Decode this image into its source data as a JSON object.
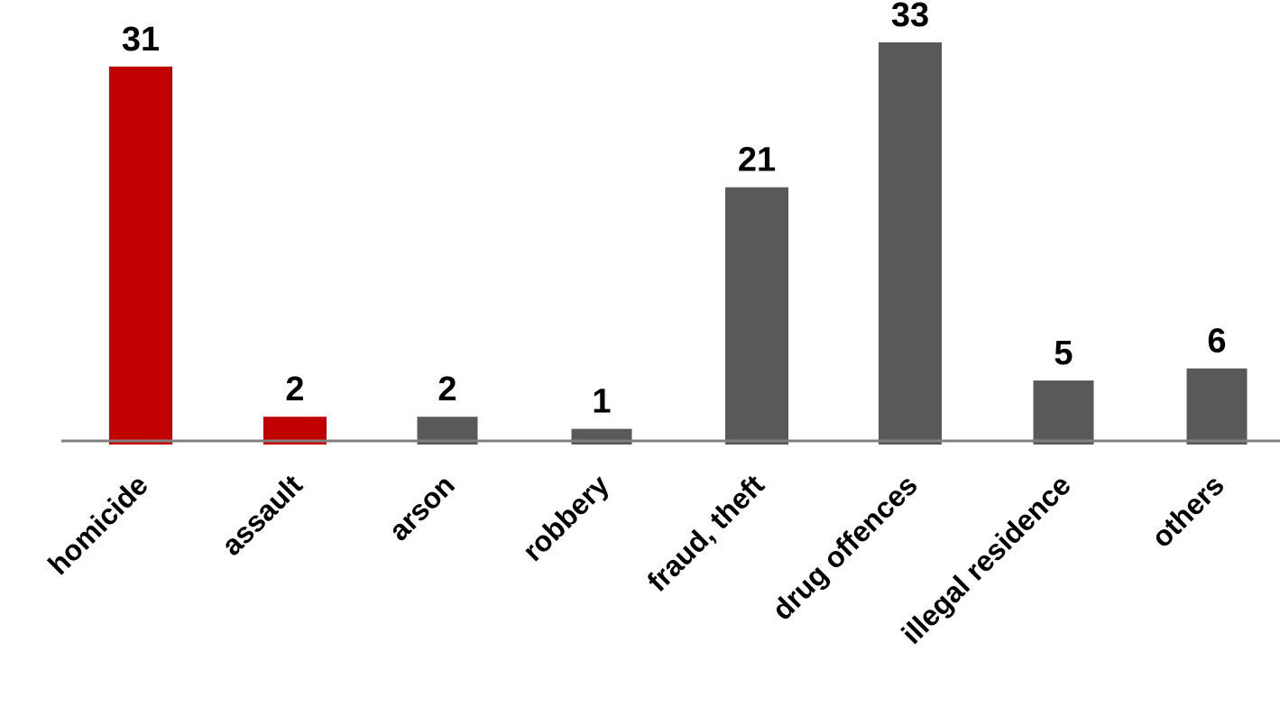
{
  "chart_data": {
    "type": "bar",
    "title": "",
    "xlabel": "",
    "ylabel": "",
    "categories": [
      "homicide",
      "assault",
      "arson",
      "robbery",
      "fraud, theft",
      "drug offences",
      "illegal residence",
      "others"
    ],
    "values": [
      31,
      2,
      2,
      1,
      21,
      33,
      5,
      6
    ],
    "data_labels": [
      "31",
      "2",
      "2",
      "1",
      "21",
      "33",
      "5",
      "6"
    ],
    "bar_colors": [
      "#c00000",
      "#c00000",
      "#595959",
      "#595959",
      "#595959",
      "#595959",
      "#595959",
      "#595959"
    ],
    "ylim": [
      0,
      33
    ],
    "grid": false,
    "legend": "none",
    "axis_color": "#808080",
    "tick_label_rotation": "-45"
  }
}
